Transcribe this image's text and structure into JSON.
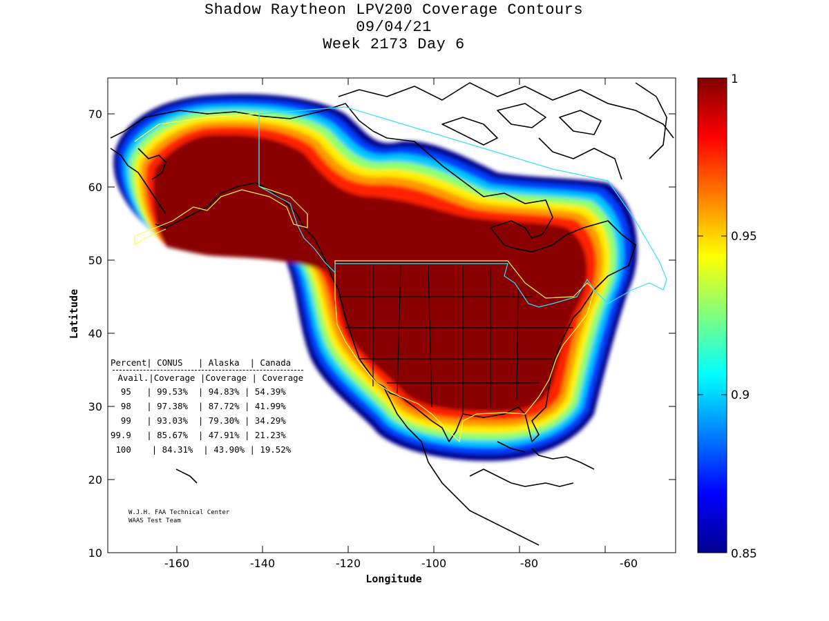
{
  "title": {
    "line1": "Shadow Raytheon LPV200 Coverage Contours",
    "line2": "09/04/21",
    "line3": "Week 2173 Day 6"
  },
  "axes": {
    "xlabel": "Longitude",
    "ylabel": "Latitude",
    "xticks": [
      "-160",
      "-140",
      "-120",
      "-100",
      "-80",
      "-60"
    ],
    "yticks": [
      "70",
      "60",
      "50",
      "40",
      "30",
      "20",
      "10"
    ]
  },
  "colorbar": {
    "labels": [
      "1",
      "0.95",
      "0.9",
      "0.85"
    ],
    "min": 0.85,
    "max": 1
  },
  "table": {
    "header1": [
      "Percent",
      "CONUS",
      "Alaska",
      "Canada"
    ],
    "header2": [
      "Avail.",
      "Coverage",
      "Coverage",
      "Coverage"
    ],
    "rows": [
      [
        "95",
        "99.53%",
        "94.83%",
        "54.39%"
      ],
      [
        "98",
        "97.38%",
        "87.72%",
        "41.99%"
      ],
      [
        "99",
        "93.03%",
        "79.30%",
        "34.29%"
      ],
      [
        "99.9",
        "85.67%",
        "47.91%",
        "21.23%"
      ],
      [
        "100",
        "84.31%",
        "43.90%",
        "19.52%"
      ]
    ]
  },
  "credit": {
    "line1": "W.J.H. FAA Technical Center",
    "line2": "WAAS Test Team"
  },
  "chart_data": {
    "type": "heatmap",
    "title": "Shadow Raytheon LPV200 Coverage Contours",
    "xlabel": "Longitude",
    "ylabel": "Latitude",
    "xlim": [
      -174,
      -50
    ],
    "ylim": [
      10,
      75
    ],
    "colorscale": "jet",
    "colorbar_range": [
      0.85,
      1
    ]
  }
}
